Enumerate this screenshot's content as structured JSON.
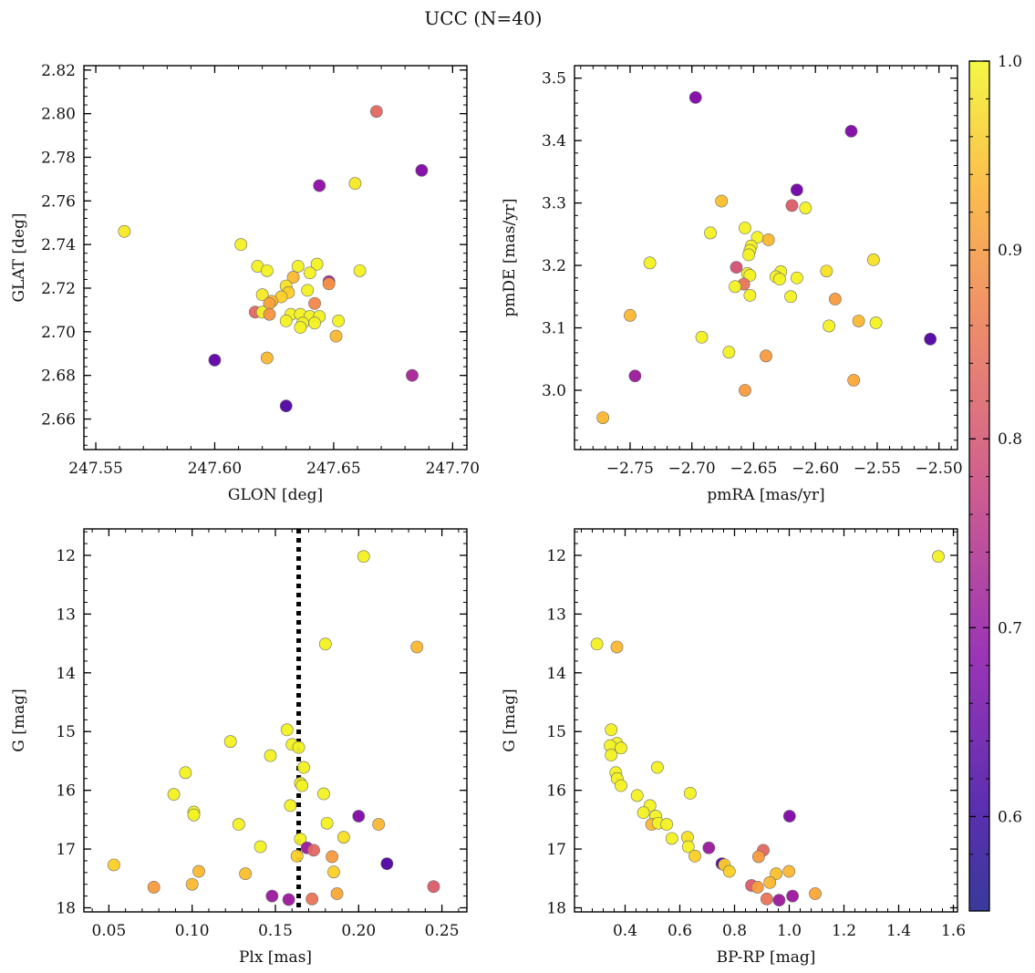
{
  "figure": {
    "title": "UCC (N=40)"
  },
  "colorbar": {
    "range": [
      0.55,
      1.0
    ],
    "ticks": [
      0.6,
      0.7,
      0.8,
      0.9,
      1.0
    ],
    "tick_labels": [
      "0.6",
      "0.7",
      "0.8",
      "0.9",
      "1.0"
    ],
    "colormap": "plasma"
  },
  "chart_data": [
    {
      "type": "scatter",
      "title": "",
      "xlabel": "GLON [deg]",
      "ylabel": "GLAT [deg]",
      "xlim": [
        247.545,
        247.706
      ],
      "ylim": [
        2.646,
        2.822
      ],
      "xticks": [
        247.55,
        247.6,
        247.65,
        247.7
      ],
      "xtick_labels": [
        "247.55",
        "247.60",
        "247.65",
        "247.70"
      ],
      "yticks": [
        2.66,
        2.68,
        2.7,
        2.72,
        2.74,
        2.76,
        2.78,
        2.8,
        2.82
      ],
      "ytick_labels": [
        "2.66",
        "2.68",
        "2.70",
        "2.72",
        "2.74",
        "2.76",
        "2.78",
        "2.80",
        "2.82"
      ],
      "y_inverted": false,
      "points": [
        {
          "x": 247.668,
          "y": 2.801,
          "c": 0.8
        },
        {
          "x": 247.687,
          "y": 2.774,
          "c": 0.62
        },
        {
          "x": 247.644,
          "y": 2.767,
          "c": 0.64
        },
        {
          "x": 247.659,
          "y": 2.768,
          "c": 0.98
        },
        {
          "x": 247.562,
          "y": 2.746,
          "c": 0.98
        },
        {
          "x": 247.611,
          "y": 2.74,
          "c": 0.99
        },
        {
          "x": 247.618,
          "y": 2.73,
          "c": 0.99
        },
        {
          "x": 247.622,
          "y": 2.728,
          "c": 0.99
        },
        {
          "x": 247.635,
          "y": 2.73,
          "c": 0.99
        },
        {
          "x": 247.643,
          "y": 2.731,
          "c": 0.99
        },
        {
          "x": 247.64,
          "y": 2.727,
          "c": 0.99
        },
        {
          "x": 247.661,
          "y": 2.728,
          "c": 0.99
        },
        {
          "x": 247.633,
          "y": 2.725,
          "c": 0.92
        },
        {
          "x": 247.648,
          "y": 2.723,
          "c": 0.68
        },
        {
          "x": 247.648,
          "y": 2.722,
          "c": 0.87
        },
        {
          "x": 247.63,
          "y": 2.721,
          "c": 0.97
        },
        {
          "x": 247.631,
          "y": 2.718,
          "c": 0.95
        },
        {
          "x": 247.639,
          "y": 2.719,
          "c": 0.99
        },
        {
          "x": 247.62,
          "y": 2.717,
          "c": 0.98
        },
        {
          "x": 247.628,
          "y": 2.716,
          "c": 0.95
        },
        {
          "x": 247.624,
          "y": 2.714,
          "c": 0.92
        },
        {
          "x": 247.623,
          "y": 2.713,
          "c": 0.89
        },
        {
          "x": 247.642,
          "y": 2.713,
          "c": 0.85
        },
        {
          "x": 247.617,
          "y": 2.709,
          "c": 0.8
        },
        {
          "x": 247.62,
          "y": 2.709,
          "c": 0.99
        },
        {
          "x": 247.623,
          "y": 2.708,
          "c": 0.87
        },
        {
          "x": 247.632,
          "y": 2.708,
          "c": 0.99
        },
        {
          "x": 247.636,
          "y": 2.708,
          "c": 0.99
        },
        {
          "x": 247.64,
          "y": 2.707,
          "c": 0.99
        },
        {
          "x": 247.644,
          "y": 2.707,
          "c": 0.99
        },
        {
          "x": 247.63,
          "y": 2.705,
          "c": 0.99
        },
        {
          "x": 247.637,
          "y": 2.704,
          "c": 0.99
        },
        {
          "x": 247.642,
          "y": 2.704,
          "c": 0.99
        },
        {
          "x": 247.652,
          "y": 2.705,
          "c": 0.99
        },
        {
          "x": 247.636,
          "y": 2.702,
          "c": 0.99
        },
        {
          "x": 247.651,
          "y": 2.698,
          "c": 0.92
        },
        {
          "x": 247.622,
          "y": 2.688,
          "c": 0.92
        },
        {
          "x": 247.6,
          "y": 2.687,
          "c": 0.58
        },
        {
          "x": 247.683,
          "y": 2.68,
          "c": 0.68
        },
        {
          "x": 247.63,
          "y": 2.666,
          "c": 0.56
        }
      ]
    },
    {
      "type": "scatter",
      "title": "",
      "xlabel": "pmRA [mas/yr]",
      "ylabel": "pmDE [mas/yr]",
      "xlim": [
        -2.795,
        -2.485
      ],
      "ylim": [
        2.905,
        3.52
      ],
      "xticks": [
        -2.75,
        -2.7,
        -2.65,
        -2.6,
        -2.55,
        -2.5
      ],
      "xtick_labels": [
        "−2.75",
        "−2.70",
        "−2.65",
        "−2.60",
        "−2.55",
        "−2.50"
      ],
      "yticks": [
        3.0,
        3.1,
        3.2,
        3.3,
        3.4,
        3.5
      ],
      "ytick_labels": [
        "3.0",
        "3.1",
        "3.2",
        "3.3",
        "3.4",
        "3.5"
      ],
      "y_inverted": false,
      "points": [
        {
          "x": -2.697,
          "y": 3.469,
          "c": 0.62
        },
        {
          "x": -2.571,
          "y": 3.415,
          "c": 0.62
        },
        {
          "x": -2.615,
          "y": 3.321,
          "c": 0.6
        },
        {
          "x": -2.619,
          "y": 3.296,
          "c": 0.78
        },
        {
          "x": -2.676,
          "y": 3.303,
          "c": 0.93
        },
        {
          "x": -2.608,
          "y": 3.292,
          "c": 0.99
        },
        {
          "x": -2.657,
          "y": 3.26,
          "c": 0.99
        },
        {
          "x": -2.685,
          "y": 3.252,
          "c": 0.99
        },
        {
          "x": -2.647,
          "y": 3.245,
          "c": 0.99
        },
        {
          "x": -2.638,
          "y": 3.241,
          "c": 0.92
        },
        {
          "x": -2.652,
          "y": 3.231,
          "c": 0.99
        },
        {
          "x": -2.653,
          "y": 3.224,
          "c": 0.99
        },
        {
          "x": -2.654,
          "y": 3.217,
          "c": 0.99
        },
        {
          "x": -2.553,
          "y": 3.209,
          "c": 0.97
        },
        {
          "x": -2.734,
          "y": 3.204,
          "c": 0.99
        },
        {
          "x": -2.664,
          "y": 3.197,
          "c": 0.76
        },
        {
          "x": -2.628,
          "y": 3.19,
          "c": 0.99
        },
        {
          "x": -2.591,
          "y": 3.191,
          "c": 0.97
        },
        {
          "x": -2.655,
          "y": 3.187,
          "c": 0.99
        },
        {
          "x": -2.653,
          "y": 3.184,
          "c": 0.99
        },
        {
          "x": -2.632,
          "y": 3.182,
          "c": 0.99
        },
        {
          "x": -2.629,
          "y": 3.178,
          "c": 0.99
        },
        {
          "x": -2.615,
          "y": 3.18,
          "c": 0.99
        },
        {
          "x": -2.658,
          "y": 3.17,
          "c": 0.82
        },
        {
          "x": -2.665,
          "y": 3.166,
          "c": 0.99
        },
        {
          "x": -2.653,
          "y": 3.152,
          "c": 0.99
        },
        {
          "x": -2.62,
          "y": 3.15,
          "c": 0.99
        },
        {
          "x": -2.584,
          "y": 3.146,
          "c": 0.88
        },
        {
          "x": -2.75,
          "y": 3.12,
          "c": 0.92
        },
        {
          "x": -2.565,
          "y": 3.111,
          "c": 0.92
        },
        {
          "x": -2.551,
          "y": 3.108,
          "c": 0.99
        },
        {
          "x": -2.589,
          "y": 3.103,
          "c": 0.99
        },
        {
          "x": -2.507,
          "y": 3.082,
          "c": 0.56
        },
        {
          "x": -2.692,
          "y": 3.085,
          "c": 0.99
        },
        {
          "x": -2.67,
          "y": 3.061,
          "c": 0.99
        },
        {
          "x": -2.64,
          "y": 3.055,
          "c": 0.88
        },
        {
          "x": -2.746,
          "y": 3.023,
          "c": 0.66
        },
        {
          "x": -2.569,
          "y": 3.016,
          "c": 0.9
        },
        {
          "x": -2.657,
          "y": 3.0,
          "c": 0.88
        },
        {
          "x": -2.772,
          "y": 2.956,
          "c": 0.92
        }
      ]
    },
    {
      "type": "scatter",
      "title": "",
      "xlabel": "Plx [mas]",
      "ylabel": "G [mag]",
      "xlim": [
        0.035,
        0.265
      ],
      "ylim": [
        18.07,
        11.55
      ],
      "xticks": [
        0.05,
        0.1,
        0.15,
        0.2,
        0.25
      ],
      "xtick_labels": [
        "0.05",
        "0.10",
        "0.15",
        "0.20",
        "0.25"
      ],
      "yticks": [
        12,
        13,
        14,
        15,
        16,
        17,
        18
      ],
      "ytick_labels": [
        "12",
        "13",
        "14",
        "15",
        "16",
        "17",
        "18"
      ],
      "y_inverted": true,
      "vline": {
        "x": 0.164,
        "style": "dotted"
      },
      "points": [
        {
          "x": 0.203,
          "y": 12.02,
          "c": 0.99
        },
        {
          "x": 0.18,
          "y": 13.51,
          "c": 0.99
        },
        {
          "x": 0.235,
          "y": 13.56,
          "c": 0.92
        },
        {
          "x": 0.157,
          "y": 14.97,
          "c": 0.99
        },
        {
          "x": 0.123,
          "y": 15.17,
          "c": 0.99
        },
        {
          "x": 0.16,
          "y": 15.22,
          "c": 0.99
        },
        {
          "x": 0.164,
          "y": 15.27,
          "c": 0.99
        },
        {
          "x": 0.147,
          "y": 15.41,
          "c": 0.99
        },
        {
          "x": 0.167,
          "y": 15.61,
          "c": 0.99
        },
        {
          "x": 0.096,
          "y": 15.7,
          "c": 0.99
        },
        {
          "x": 0.165,
          "y": 15.88,
          "c": 0.99
        },
        {
          "x": 0.166,
          "y": 15.92,
          "c": 0.99
        },
        {
          "x": 0.089,
          "y": 16.07,
          "c": 0.99
        },
        {
          "x": 0.179,
          "y": 16.06,
          "c": 0.99
        },
        {
          "x": 0.159,
          "y": 16.26,
          "c": 0.99
        },
        {
          "x": 0.101,
          "y": 16.37,
          "c": 0.99
        },
        {
          "x": 0.101,
          "y": 16.42,
          "c": 0.99
        },
        {
          "x": 0.2,
          "y": 16.44,
          "c": 0.62
        },
        {
          "x": 0.128,
          "y": 16.58,
          "c": 0.99
        },
        {
          "x": 0.181,
          "y": 16.56,
          "c": 0.99
        },
        {
          "x": 0.212,
          "y": 16.58,
          "c": 0.92
        },
        {
          "x": 0.191,
          "y": 16.8,
          "c": 0.97
        },
        {
          "x": 0.165,
          "y": 16.83,
          "c": 0.99
        },
        {
          "x": 0.141,
          "y": 16.96,
          "c": 0.99
        },
        {
          "x": 0.169,
          "y": 16.98,
          "c": 0.66
        },
        {
          "x": 0.173,
          "y": 17.02,
          "c": 0.8
        },
        {
          "x": 0.163,
          "y": 17.12,
          "c": 0.95
        },
        {
          "x": 0.184,
          "y": 17.13,
          "c": 0.88
        },
        {
          "x": 0.053,
          "y": 17.27,
          "c": 0.95
        },
        {
          "x": 0.217,
          "y": 17.25,
          "c": 0.56
        },
        {
          "x": 0.104,
          "y": 17.38,
          "c": 0.92
        },
        {
          "x": 0.185,
          "y": 17.39,
          "c": 0.95
        },
        {
          "x": 0.132,
          "y": 17.42,
          "c": 0.93
        },
        {
          "x": 0.1,
          "y": 17.6,
          "c": 0.92
        },
        {
          "x": 0.077,
          "y": 17.65,
          "c": 0.88
        },
        {
          "x": 0.245,
          "y": 17.64,
          "c": 0.78
        },
        {
          "x": 0.187,
          "y": 17.76,
          "c": 0.9
        },
        {
          "x": 0.148,
          "y": 17.8,
          "c": 0.66
        },
        {
          "x": 0.172,
          "y": 17.85,
          "c": 0.82
        },
        {
          "x": 0.158,
          "y": 17.86,
          "c": 0.66
        }
      ]
    },
    {
      "type": "scatter",
      "title": "",
      "xlabel": "BP-RP [mag]",
      "ylabel": "G [mag]",
      "xlim": [
        0.215,
        1.615
      ],
      "ylim": [
        18.07,
        11.55
      ],
      "xticks": [
        0.4,
        0.6,
        0.8,
        1.0,
        1.2,
        1.4,
        1.6
      ],
      "xtick_labels": [
        "0.4",
        "0.6",
        "0.8",
        "1.0",
        "1.2",
        "1.4",
        "1.6"
      ],
      "yticks": [
        12,
        13,
        14,
        15,
        16,
        17,
        18
      ],
      "ytick_labels": [
        "12",
        "13",
        "14",
        "15",
        "16",
        "17",
        "18"
      ],
      "y_inverted": true,
      "points": [
        {
          "x": 1.545,
          "y": 12.02,
          "c": 0.99
        },
        {
          "x": 0.297,
          "y": 13.51,
          "c": 0.99
        },
        {
          "x": 0.37,
          "y": 13.56,
          "c": 0.92
        },
        {
          "x": 0.349,
          "y": 14.97,
          "c": 0.99
        },
        {
          "x": 0.37,
          "y": 15.2,
          "c": 0.99
        },
        {
          "x": 0.345,
          "y": 15.24,
          "c": 0.99
        },
        {
          "x": 0.385,
          "y": 15.28,
          "c": 0.99
        },
        {
          "x": 0.349,
          "y": 15.4,
          "c": 0.99
        },
        {
          "x": 0.518,
          "y": 15.61,
          "c": 0.99
        },
        {
          "x": 0.366,
          "y": 15.7,
          "c": 0.99
        },
        {
          "x": 0.371,
          "y": 15.8,
          "c": 0.99
        },
        {
          "x": 0.385,
          "y": 15.92,
          "c": 0.99
        },
        {
          "x": 0.638,
          "y": 16.05,
          "c": 0.99
        },
        {
          "x": 0.444,
          "y": 16.09,
          "c": 0.99
        },
        {
          "x": 0.491,
          "y": 16.26,
          "c": 0.99
        },
        {
          "x": 0.467,
          "y": 16.38,
          "c": 0.99
        },
        {
          "x": 1.001,
          "y": 16.44,
          "c": 0.62
        },
        {
          "x": 0.512,
          "y": 16.44,
          "c": 0.99
        },
        {
          "x": 0.497,
          "y": 16.58,
          "c": 0.92
        },
        {
          "x": 0.521,
          "y": 16.56,
          "c": 0.99
        },
        {
          "x": 0.552,
          "y": 16.58,
          "c": 0.99
        },
        {
          "x": 0.571,
          "y": 16.82,
          "c": 0.99
        },
        {
          "x": 0.628,
          "y": 16.8,
          "c": 0.97
        },
        {
          "x": 0.631,
          "y": 16.96,
          "c": 0.99
        },
        {
          "x": 0.706,
          "y": 16.98,
          "c": 0.66
        },
        {
          "x": 0.905,
          "y": 17.02,
          "c": 0.8
        },
        {
          "x": 0.655,
          "y": 17.12,
          "c": 0.95
        },
        {
          "x": 0.888,
          "y": 17.13,
          "c": 0.88
        },
        {
          "x": 0.754,
          "y": 17.25,
          "c": 0.56
        },
        {
          "x": 0.763,
          "y": 17.27,
          "c": 0.95
        },
        {
          "x": 0.781,
          "y": 17.38,
          "c": 0.95
        },
        {
          "x": 0.999,
          "y": 17.38,
          "c": 0.92
        },
        {
          "x": 0.952,
          "y": 17.42,
          "c": 0.93
        },
        {
          "x": 0.929,
          "y": 17.57,
          "c": 0.92
        },
        {
          "x": 0.862,
          "y": 17.62,
          "c": 0.78
        },
        {
          "x": 0.884,
          "y": 17.65,
          "c": 0.88
        },
        {
          "x": 1.095,
          "y": 17.76,
          "c": 0.9
        },
        {
          "x": 1.012,
          "y": 17.8,
          "c": 0.66
        },
        {
          "x": 0.918,
          "y": 17.85,
          "c": 0.82
        },
        {
          "x": 0.963,
          "y": 17.87,
          "c": 0.66
        }
      ]
    }
  ]
}
